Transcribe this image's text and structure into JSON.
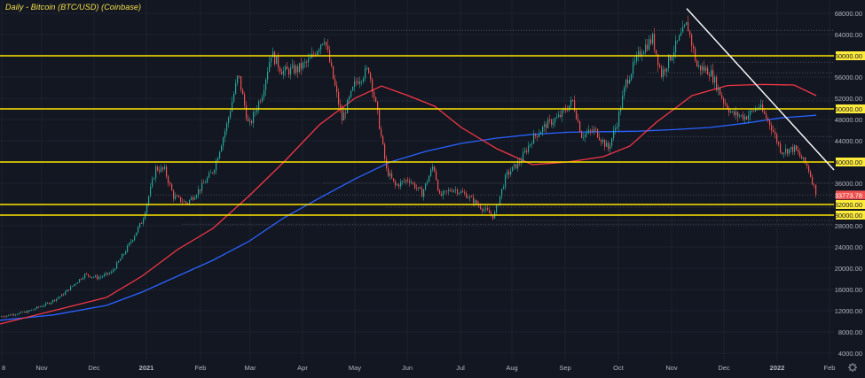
{
  "chart_data": {
    "type": "candlestick",
    "title": "Daily - Bitcoin (BTC/USD) (Coinbase)",
    "x_tick_labels": [
      "8",
      "Nov",
      "Dec",
      "2021",
      "Feb",
      "Mar",
      "Apr",
      "May",
      "Jun",
      "Jul",
      "Aug",
      "Sep",
      "Oct",
      "Nov",
      "Dec",
      "2022",
      "Feb"
    ],
    "y_tick_labels": [
      "4000.00",
      "8000.00",
      "12000.00",
      "16000.00",
      "20000.00",
      "24000.00",
      "28000.00",
      "36000.00",
      "44000.00",
      "48000.00",
      "52000.00",
      "56000.00",
      "64000.00",
      "68000.00"
    ],
    "ylim": [
      2500,
      70500
    ],
    "last_price": "33773.78",
    "levels": [
      {
        "value": 60000,
        "label": "60000.00"
      },
      {
        "value": 50000,
        "label": "50000.00"
      },
      {
        "value": 40000,
        "label": "40000.00"
      },
      {
        "value": 32000,
        "label": "32000.00"
      },
      {
        "value": 30000,
        "label": "30000.00"
      }
    ],
    "moving_averages": [
      {
        "color": "#2962ff",
        "points": [
          [
            0,
            10200
          ],
          [
            60,
            11200
          ],
          [
            120,
            13000
          ],
          [
            160,
            15500
          ],
          [
            200,
            18500
          ],
          [
            240,
            21500
          ],
          [
            280,
            25000
          ],
          [
            320,
            29500
          ],
          [
            360,
            33200
          ],
          [
            400,
            36800
          ],
          [
            440,
            40000
          ],
          [
            480,
            42000
          ],
          [
            520,
            43500
          ],
          [
            560,
            44500
          ],
          [
            600,
            45200
          ],
          [
            640,
            45600
          ],
          [
            680,
            45700
          ],
          [
            720,
            45800
          ],
          [
            760,
            46100
          ],
          [
            800,
            46500
          ],
          [
            840,
            47300
          ],
          [
            880,
            48300
          ],
          [
            920,
            48800
          ]
        ]
      },
      {
        "color": "#f23645",
        "points": [
          [
            0,
            9500
          ],
          [
            60,
            12000
          ],
          [
            120,
            14500
          ],
          [
            160,
            18500
          ],
          [
            200,
            23500
          ],
          [
            240,
            27500
          ],
          [
            280,
            33500
          ],
          [
            320,
            40000
          ],
          [
            360,
            47000
          ],
          [
            400,
            52000
          ],
          [
            430,
            54300
          ],
          [
            460,
            52500
          ],
          [
            490,
            50500
          ],
          [
            520,
            46500
          ],
          [
            560,
            42500
          ],
          [
            600,
            39500
          ],
          [
            640,
            40000
          ],
          [
            680,
            41000
          ],
          [
            710,
            43000
          ],
          [
            740,
            47500
          ],
          [
            780,
            52500
          ],
          [
            820,
            54400
          ],
          [
            860,
            54600
          ],
          [
            895,
            54500
          ],
          [
            920,
            52500
          ]
        ]
      }
    ],
    "trendline": {
      "color": "#ffffff",
      "points": [
        [
          774,
          68900
        ],
        [
          940,
          38500
        ]
      ]
    },
    "candles_color_up": "#26a69a",
    "candles_color_down": "#ef5350",
    "axis_text_color": "#b2b5be",
    "level_line_color": "#ffe500",
    "background": "#131722",
    "price_path": [
      [
        0,
        10900
      ],
      [
        30,
        11800
      ],
      [
        55,
        13500
      ],
      [
        70,
        15000
      ],
      [
        95,
        18800
      ],
      [
        110,
        18200
      ],
      [
        125,
        19200
      ],
      [
        140,
        23000
      ],
      [
        160,
        29000
      ],
      [
        175,
        38800
      ],
      [
        185,
        38500
      ],
      [
        195,
        33500
      ],
      [
        210,
        32200
      ],
      [
        225,
        35000
      ],
      [
        240,
        38500
      ],
      [
        255,
        47000
      ],
      [
        268,
        56500
      ],
      [
        280,
        46500
      ],
      [
        295,
        53000
      ],
      [
        305,
        60500
      ],
      [
        318,
        57000
      ],
      [
        335,
        57500
      ],
      [
        348,
        59000
      ],
      [
        365,
        63500
      ],
      [
        372,
        58000
      ],
      [
        385,
        48000
      ],
      [
        400,
        55000
      ],
      [
        415,
        57500
      ],
      [
        425,
        49000
      ],
      [
        435,
        38500
      ],
      [
        445,
        35500
      ],
      [
        460,
        36800
      ],
      [
        475,
        34000
      ],
      [
        488,
        39500
      ],
      [
        495,
        33500
      ],
      [
        510,
        35000
      ],
      [
        525,
        33800
      ],
      [
        540,
        31700
      ],
      [
        556,
        29700
      ],
      [
        570,
        37500
      ],
      [
        585,
        40000
      ],
      [
        600,
        44500
      ],
      [
        615,
        47000
      ],
      [
        630,
        48500
      ],
      [
        645,
        51500
      ],
      [
        655,
        45000
      ],
      [
        670,
        46000
      ],
      [
        685,
        42500
      ],
      [
        695,
        47500
      ],
      [
        705,
        55000
      ],
      [
        722,
        61000
      ],
      [
        735,
        63200
      ],
      [
        745,
        56500
      ],
      [
        760,
        61500
      ],
      [
        774,
        66000
      ],
      [
        785,
        58000
      ],
      [
        800,
        57000
      ],
      [
        815,
        51500
      ],
      [
        825,
        49000
      ],
      [
        840,
        48500
      ],
      [
        855,
        50500
      ],
      [
        868,
        47000
      ],
      [
        880,
        42000
      ],
      [
        895,
        42500
      ],
      [
        910,
        39000
      ],
      [
        920,
        33800
      ]
    ]
  }
}
